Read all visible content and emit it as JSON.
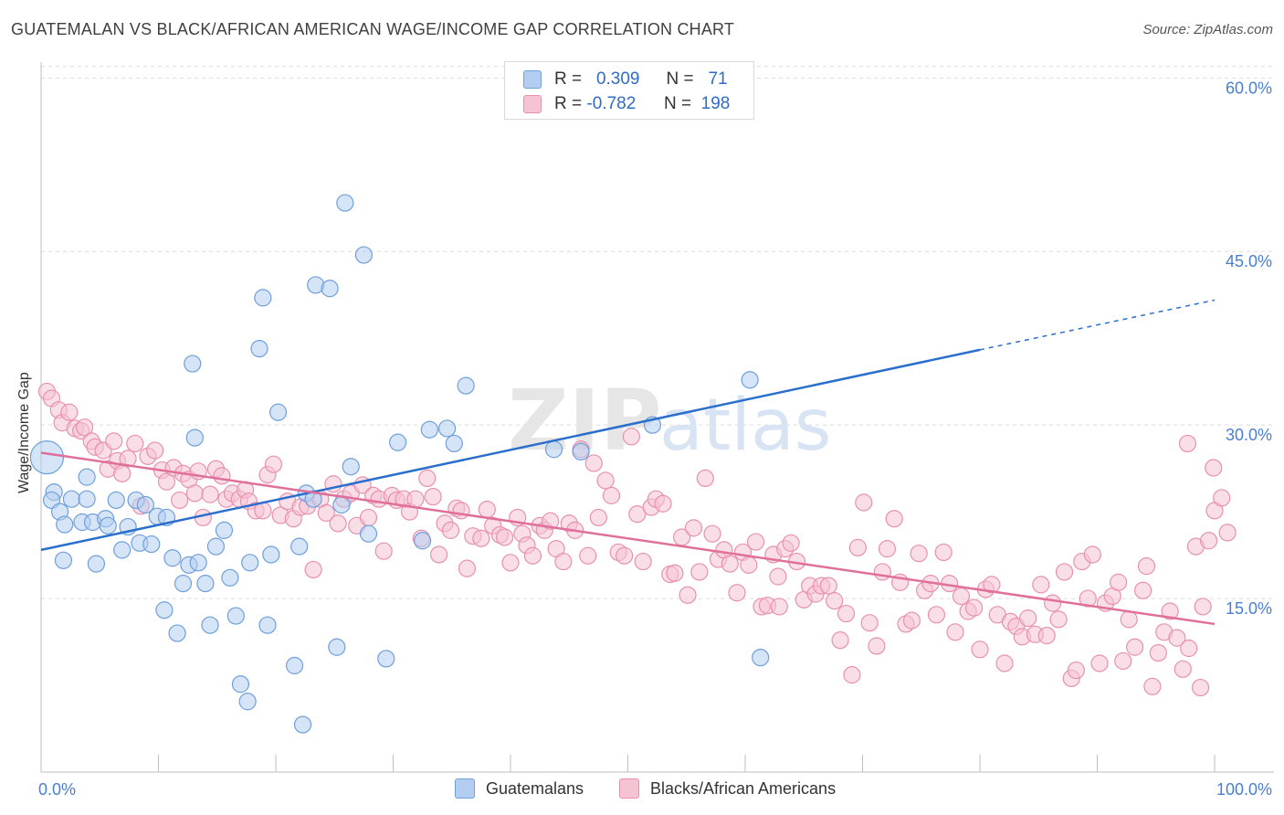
{
  "title": "GUATEMALAN VS BLACK/AFRICAN AMERICAN WAGE/INCOME GAP CORRELATION CHART",
  "source": "Source: ZipAtlas.com",
  "watermark": {
    "zip": "ZIP",
    "atlas": "atlas"
  },
  "legend_top": {
    "r_label": "R =",
    "n_label": "N =",
    "rows": [
      {
        "r": "0.309",
        "n": "71"
      },
      {
        "r": "-0.782",
        "n": "198"
      }
    ]
  },
  "colors": {
    "blue_fill": "#b3cdf0",
    "blue_stroke": "#6f9fdc",
    "blue_line": "#2b6fcc",
    "pink_fill": "#f6c3d3",
    "pink_stroke": "#e891ae",
    "pink_line": "#e0709b",
    "tick_label": "#4a7fd0",
    "grid": "#dcdcdc"
  },
  "chart_data": {
    "type": "scatter",
    "xlabel": "",
    "ylabel": "Wage/Income Gap",
    "xlim": [
      0,
      100
    ],
    "ylim": [
      0,
      62
    ],
    "x_tick_labels": [
      "0.0%",
      "100.0%"
    ],
    "y_ticks": [
      15,
      30,
      45,
      60
    ],
    "y_tick_labels": [
      "15.0%",
      "30.0%",
      "45.0%",
      "60.0%"
    ],
    "grid": "horizontal dashed",
    "legend_placement": "bottom",
    "series": [
      {
        "name": "Guatemalans",
        "r": 0.309,
        "n": 71,
        "trend": {
          "x0": 0,
          "y0": 19.2,
          "x1": 80,
          "y1": 36.5,
          "dash_to_x": 100,
          "dash_to_y": 40.8
        },
        "points": [
          [
            0.5,
            27.2,
            "big"
          ],
          [
            1.1,
            24.2
          ],
          [
            0.9,
            23.5
          ],
          [
            1.6,
            22.5
          ],
          [
            2.0,
            21.4
          ],
          [
            2.6,
            23.6
          ],
          [
            3.5,
            21.6
          ],
          [
            3.9,
            23.6
          ],
          [
            3.9,
            25.5
          ],
          [
            4.4,
            21.6
          ],
          [
            4.7,
            18.0
          ],
          [
            5.5,
            21.9
          ],
          [
            5.7,
            21.3
          ],
          [
            6.4,
            23.5
          ],
          [
            6.9,
            19.2
          ],
          [
            7.4,
            21.2
          ],
          [
            8.1,
            23.5
          ],
          [
            8.4,
            19.8
          ],
          [
            8.9,
            23.1
          ],
          [
            9.4,
            19.7
          ],
          [
            9.9,
            22.1
          ],
          [
            10.5,
            14.0
          ],
          [
            10.7,
            22.0
          ],
          [
            11.2,
            18.5
          ],
          [
            11.6,
            12.0
          ],
          [
            12.1,
            16.3
          ],
          [
            12.6,
            17.9
          ],
          [
            12.9,
            35.3
          ],
          [
            13.1,
            28.9
          ],
          [
            13.4,
            18.1
          ],
          [
            14.0,
            16.3
          ],
          [
            14.4,
            12.7
          ],
          [
            14.9,
            19.5
          ],
          [
            15.6,
            20.9
          ],
          [
            16.1,
            16.8
          ],
          [
            16.6,
            13.5
          ],
          [
            17.0,
            7.6
          ],
          [
            17.6,
            6.1
          ],
          [
            17.8,
            18.1
          ],
          [
            18.6,
            36.6
          ],
          [
            18.9,
            41.0
          ],
          [
            19.3,
            12.7
          ],
          [
            19.6,
            18.8
          ],
          [
            20.2,
            31.1
          ],
          [
            21.6,
            9.2
          ],
          [
            22.0,
            19.5
          ],
          [
            22.3,
            4.1
          ],
          [
            22.6,
            24.1
          ],
          [
            23.2,
            23.6
          ],
          [
            23.4,
            42.1
          ],
          [
            24.6,
            41.8
          ],
          [
            25.2,
            10.8
          ],
          [
            25.6,
            23.1
          ],
          [
            25.9,
            49.2
          ],
          [
            26.4,
            26.4
          ],
          [
            27.5,
            44.7
          ],
          [
            27.9,
            20.6
          ],
          [
            29.4,
            9.8
          ],
          [
            30.4,
            28.5
          ],
          [
            32.5,
            20.0
          ],
          [
            33.1,
            29.6
          ],
          [
            34.6,
            29.7
          ],
          [
            35.2,
            28.4
          ],
          [
            36.2,
            33.4
          ],
          [
            43.7,
            27.9
          ],
          [
            46.0,
            27.7
          ],
          [
            52.1,
            30.0
          ],
          [
            55.8,
            59.8
          ],
          [
            60.4,
            33.9
          ],
          [
            61.3,
            9.9
          ],
          [
            1.9,
            18.3
          ]
        ]
      },
      {
        "name": "Blacks/African Americans",
        "r": -0.782,
        "n": 198,
        "trend": {
          "x0": 0,
          "y0": 27.6,
          "x1": 100,
          "y1": 12.8
        },
        "points": [
          [
            0.5,
            32.9
          ],
          [
            0.9,
            32.3
          ],
          [
            1.5,
            31.3
          ],
          [
            1.8,
            30.2
          ],
          [
            2.4,
            31.1
          ],
          [
            2.9,
            29.7
          ],
          [
            3.4,
            29.5
          ],
          [
            3.7,
            29.8
          ],
          [
            4.3,
            28.6
          ],
          [
            4.6,
            28.1
          ],
          [
            5.3,
            27.8
          ],
          [
            5.7,
            26.2
          ],
          [
            6.2,
            28.6
          ],
          [
            6.5,
            26.9
          ],
          [
            6.9,
            25.8
          ],
          [
            7.4,
            27.1
          ],
          [
            8.0,
            28.4
          ],
          [
            8.5,
            23.0
          ],
          [
            9.1,
            27.3
          ],
          [
            9.7,
            27.8
          ],
          [
            10.3,
            26.1
          ],
          [
            10.7,
            25.1
          ],
          [
            11.3,
            26.3
          ],
          [
            11.8,
            23.5
          ],
          [
            12.1,
            25.8
          ],
          [
            12.6,
            25.3
          ],
          [
            13.1,
            24.1
          ],
          [
            13.4,
            26.0
          ],
          [
            13.8,
            22.0
          ],
          [
            14.4,
            24.0
          ],
          [
            14.9,
            26.2
          ],
          [
            15.4,
            25.6
          ],
          [
            15.8,
            23.6
          ],
          [
            16.3,
            24.1
          ],
          [
            16.9,
            23.6
          ],
          [
            17.4,
            24.4
          ],
          [
            17.7,
            23.4
          ],
          [
            18.3,
            22.6
          ],
          [
            18.9,
            22.6
          ],
          [
            19.3,
            25.7
          ],
          [
            19.8,
            26.6
          ],
          [
            20.4,
            22.2
          ],
          [
            21.0,
            23.4
          ],
          [
            21.5,
            21.9
          ],
          [
            22.1,
            22.9
          ],
          [
            22.7,
            23.0
          ],
          [
            23.2,
            17.5
          ],
          [
            23.8,
            23.6
          ],
          [
            24.3,
            22.4
          ],
          [
            24.9,
            24.9
          ],
          [
            25.3,
            21.5
          ],
          [
            25.8,
            23.6
          ],
          [
            26.4,
            24.1
          ],
          [
            26.9,
            21.3
          ],
          [
            27.4,
            24.8
          ],
          [
            27.9,
            22.0
          ],
          [
            28.3,
            23.9
          ],
          [
            28.8,
            23.6
          ],
          [
            29.2,
            19.1
          ],
          [
            29.9,
            23.9
          ],
          [
            30.3,
            23.5
          ],
          [
            30.9,
            23.6
          ],
          [
            31.4,
            22.5
          ],
          [
            31.9,
            23.6
          ],
          [
            32.4,
            20.2
          ],
          [
            32.9,
            25.4
          ],
          [
            33.4,
            23.8
          ],
          [
            33.9,
            18.8
          ],
          [
            34.4,
            21.5
          ],
          [
            34.9,
            20.9
          ],
          [
            35.4,
            22.8
          ],
          [
            35.8,
            22.6
          ],
          [
            36.3,
            17.6
          ],
          [
            36.8,
            20.4
          ],
          [
            37.5,
            20.2
          ],
          [
            38.0,
            22.7
          ],
          [
            38.5,
            21.3
          ],
          [
            39.1,
            20.5
          ],
          [
            39.5,
            20.3
          ],
          [
            40.0,
            18.1
          ],
          [
            40.6,
            22.0
          ],
          [
            41.0,
            20.6
          ],
          [
            41.4,
            19.6
          ],
          [
            41.9,
            18.7
          ],
          [
            42.5,
            21.3
          ],
          [
            42.9,
            20.9
          ],
          [
            43.4,
            21.7
          ],
          [
            43.9,
            19.3
          ],
          [
            44.5,
            18.2
          ],
          [
            45.0,
            21.5
          ],
          [
            45.5,
            20.9
          ],
          [
            46.0,
            27.9
          ],
          [
            46.6,
            18.7
          ],
          [
            47.1,
            26.7
          ],
          [
            47.5,
            22.0
          ],
          [
            48.1,
            25.2
          ],
          [
            48.6,
            23.9
          ],
          [
            49.2,
            19.0
          ],
          [
            49.7,
            18.7
          ],
          [
            50.3,
            29.0
          ],
          [
            50.8,
            22.3
          ],
          [
            51.3,
            18.2
          ],
          [
            52.0,
            22.9
          ],
          [
            52.4,
            23.6
          ],
          [
            53.0,
            23.2
          ],
          [
            53.6,
            17.1
          ],
          [
            54.0,
            17.2
          ],
          [
            54.6,
            20.3
          ],
          [
            55.1,
            15.3
          ],
          [
            55.6,
            21.1
          ],
          [
            56.1,
            17.3
          ],
          [
            56.6,
            25.4
          ],
          [
            57.2,
            20.6
          ],
          [
            57.7,
            18.4
          ],
          [
            58.2,
            19.2
          ],
          [
            58.7,
            18.0
          ],
          [
            59.3,
            15.5
          ],
          [
            59.8,
            19.0
          ],
          [
            60.3,
            17.9
          ],
          [
            60.9,
            19.9
          ],
          [
            61.4,
            14.3
          ],
          [
            61.9,
            14.4
          ],
          [
            62.4,
            18.8
          ],
          [
            62.8,
            16.9
          ],
          [
            63.4,
            19.3
          ],
          [
            63.9,
            19.8
          ],
          [
            64.4,
            18.2
          ],
          [
            65.0,
            14.9
          ],
          [
            65.5,
            16.1
          ],
          [
            66.0,
            15.4
          ],
          [
            66.5,
            16.1
          ],
          [
            67.1,
            16.1
          ],
          [
            67.6,
            14.8
          ],
          [
            68.1,
            11.4
          ],
          [
            68.6,
            13.7
          ],
          [
            69.1,
            8.4
          ],
          [
            69.6,
            19.4
          ],
          [
            70.1,
            23.3
          ],
          [
            70.6,
            12.9
          ],
          [
            71.2,
            10.9
          ],
          [
            71.7,
            17.3
          ],
          [
            72.1,
            19.3
          ],
          [
            72.7,
            21.9
          ],
          [
            73.2,
            16.4
          ],
          [
            73.7,
            12.8
          ],
          [
            74.2,
            13.1
          ],
          [
            74.8,
            18.9
          ],
          [
            75.3,
            15.7
          ],
          [
            75.8,
            16.3
          ],
          [
            76.3,
            13.6
          ],
          [
            76.9,
            19.0
          ],
          [
            77.4,
            16.3
          ],
          [
            77.9,
            12.1
          ],
          [
            78.4,
            15.2
          ],
          [
            79.0,
            13.9
          ],
          [
            79.5,
            14.2
          ],
          [
            80.0,
            10.6
          ],
          [
            80.5,
            15.8
          ],
          [
            81.0,
            16.2
          ],
          [
            81.5,
            13.6
          ],
          [
            82.1,
            9.4
          ],
          [
            82.6,
            13.0
          ],
          [
            83.1,
            12.6
          ],
          [
            83.6,
            11.7
          ],
          [
            84.1,
            13.3
          ],
          [
            84.7,
            11.9
          ],
          [
            85.2,
            16.2
          ],
          [
            85.7,
            11.8
          ],
          [
            86.2,
            14.6
          ],
          [
            86.7,
            13.2
          ],
          [
            87.2,
            17.3
          ],
          [
            87.8,
            8.1
          ],
          [
            88.2,
            8.8
          ],
          [
            88.7,
            18.2
          ],
          [
            89.2,
            15.0
          ],
          [
            89.6,
            18.8
          ],
          [
            90.2,
            9.4
          ],
          [
            90.7,
            14.6
          ],
          [
            91.3,
            15.2
          ],
          [
            91.8,
            16.4
          ],
          [
            92.2,
            9.6
          ],
          [
            92.7,
            13.2
          ],
          [
            93.2,
            10.8
          ],
          [
            93.9,
            15.7
          ],
          [
            94.2,
            17.8
          ],
          [
            94.7,
            7.4
          ],
          [
            95.2,
            10.3
          ],
          [
            95.7,
            12.1
          ],
          [
            96.2,
            13.9
          ],
          [
            96.8,
            11.6
          ],
          [
            97.3,
            8.9
          ],
          [
            97.8,
            10.7
          ],
          [
            98.4,
            19.5
          ],
          [
            99.0,
            14.3
          ],
          [
            99.5,
            20.0
          ],
          [
            100.0,
            22.6
          ],
          [
            100.6,
            23.7
          ],
          [
            101.1,
            20.7
          ],
          [
            97.7,
            28.4
          ],
          [
            99.9,
            26.3
          ],
          [
            98.8,
            7.3
          ],
          [
            62.9,
            14.3
          ]
        ]
      }
    ]
  },
  "bottom_legend": [
    {
      "label": "Guatemalans"
    },
    {
      "label": "Blacks/African Americans"
    }
  ]
}
